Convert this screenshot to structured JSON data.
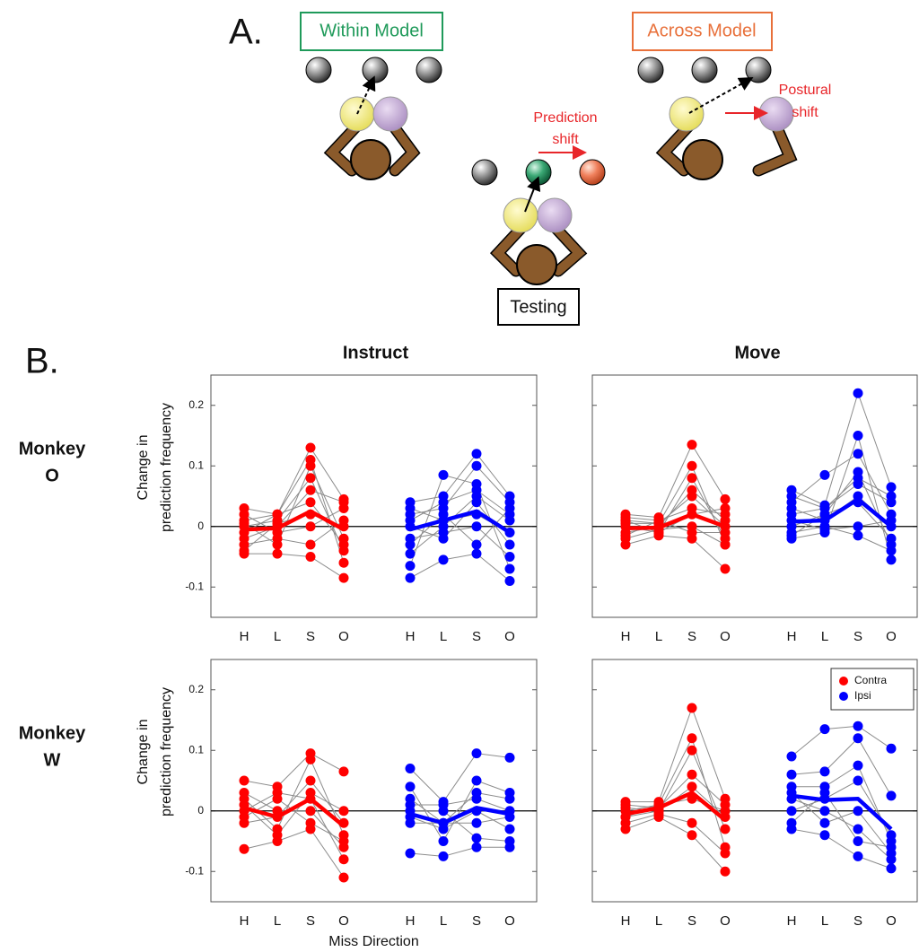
{
  "diagram": {
    "panel_a": "A.",
    "within": "Within Model",
    "across": "Across Model",
    "prediction_shift": [
      "Prediction",
      "shift"
    ],
    "postural_shift": [
      "Postural",
      "shift"
    ],
    "testing": "Testing",
    "panel_b": "B."
  },
  "chart_data": [
    {
      "type": "line",
      "title": "Instruct",
      "row_label": [
        "Monkey",
        "O"
      ],
      "ylabel": [
        "Change in",
        "prediction frequency"
      ],
      "ylim": [
        -0.15,
        0.25
      ],
      "yticks": [
        -0.1,
        0,
        0.1,
        0.2
      ],
      "ytick_labels": true,
      "zero_line": true,
      "groups": [
        {
          "color": "#ff0000",
          "categories": [
            "H",
            "L",
            "S",
            "O"
          ],
          "values": [
            -0.005,
            -0.003,
            0.025,
            -0.005
          ],
          "sessions": [
            [
              0.03,
              0.02,
              0.13,
              0.045
            ],
            [
              -0.045,
              -0.045,
              -0.05,
              -0.085
            ],
            [
              0.01,
              0.02,
              0.11,
              -0.06
            ],
            [
              -0.02,
              0.0,
              0.06,
              0.04
            ],
            [
              -0.03,
              -0.02,
              -0.03,
              0.01
            ],
            [
              0.0,
              0.01,
              0.08,
              -0.04
            ],
            [
              0.02,
              -0.01,
              0.0,
              0.03
            ],
            [
              -0.01,
              0.02,
              0.04,
              -0.03
            ],
            [
              0.005,
              -0.03,
              0.1,
              -0.02
            ],
            [
              -0.04,
              0.005,
              0.02,
              0.0
            ]
          ]
        },
        {
          "color": "#0000ff",
          "categories": [
            "H",
            "L",
            "S",
            "O"
          ],
          "values": [
            -0.005,
            0.01,
            0.025,
            -0.01
          ],
          "sessions": [
            [
              0.04,
              0.05,
              0.12,
              0.05
            ],
            [
              -0.085,
              -0.055,
              -0.045,
              -0.09
            ],
            [
              -0.065,
              0.085,
              0.07,
              -0.07
            ],
            [
              0.02,
              0.03,
              0.1,
              0.04
            ],
            [
              -0.02,
              -0.01,
              0.0,
              -0.05
            ],
            [
              0.01,
              0.04,
              0.06,
              0.02
            ],
            [
              -0.03,
              0.02,
              -0.03,
              0.03
            ],
            [
              0.0,
              -0.02,
              0.04,
              -0.03
            ],
            [
              0.03,
              0.01,
              0.02,
              -0.01
            ],
            [
              -0.045,
              0.0,
              0.05,
              0.01
            ]
          ]
        }
      ]
    },
    {
      "type": "line",
      "title": "Move",
      "ylim": [
        -0.15,
        0.25
      ],
      "yticks": [
        -0.1,
        0,
        0.1,
        0.2
      ],
      "ytick_labels": false,
      "zero_line": true,
      "groups": [
        {
          "color": "#ff0000",
          "categories": [
            "H",
            "L",
            "S",
            "O"
          ],
          "values": [
            -0.003,
            -0.002,
            0.02,
            0
          ],
          "sessions": [
            [
              0.02,
              0.015,
              0.135,
              0.045
            ],
            [
              -0.03,
              -0.015,
              -0.02,
              -0.07
            ],
            [
              0.01,
              0.005,
              0.1,
              -0.03
            ],
            [
              -0.01,
              0.0,
              0.06,
              0.01
            ],
            [
              0.0,
              -0.01,
              0.08,
              -0.02
            ],
            [
              0.015,
              0.01,
              0.03,
              0.02
            ],
            [
              -0.02,
              -0.005,
              0.0,
              -0.03
            ],
            [
              0.005,
              0.005,
              0.05,
              0.0
            ],
            [
              -0.015,
              0.01,
              -0.01,
              -0.01
            ],
            [
              0.01,
              -0.01,
              0.02,
              0.03
            ]
          ]
        },
        {
          "color": "#0000ff",
          "categories": [
            "H",
            "L",
            "S",
            "O"
          ],
          "values": [
            0.008,
            0.01,
            0.045,
            0
          ],
          "sessions": [
            [
              0.06,
              0.035,
              0.22,
              0.065
            ],
            [
              -0.02,
              -0.01,
              0.15,
              -0.055
            ],
            [
              0.04,
              0.085,
              0.12,
              0.02
            ],
            [
              0.0,
              0.02,
              0.09,
              -0.03
            ],
            [
              0.02,
              0.03,
              0.07,
              0.04
            ],
            [
              -0.01,
              0.0,
              -0.015,
              -0.04
            ],
            [
              0.03,
              0.01,
              0.05,
              0.0
            ],
            [
              0.01,
              -0.005,
              0.0,
              0.01
            ],
            [
              -0.015,
              0.02,
              0.04,
              -0.02
            ],
            [
              0.05,
              0.03,
              0.08,
              0.05
            ]
          ]
        }
      ]
    },
    {
      "type": "line",
      "row_label": [
        "Monkey",
        "W"
      ],
      "ylabel": [
        "Change in",
        "prediction frequency"
      ],
      "xlabel": "Miss Direction",
      "ylim": [
        -0.15,
        0.25
      ],
      "yticks": [
        -0.1,
        0,
        0.1,
        0.2
      ],
      "ytick_labels": true,
      "zero_line": true,
      "groups": [
        {
          "color": "#ff0000",
          "categories": [
            "H",
            "L",
            "S",
            "O"
          ],
          "values": [
            0.005,
            -0.01,
            0.02,
            -0.025
          ],
          "sessions": [
            [
              0.05,
              0.04,
              0.095,
              0.065
            ],
            [
              -0.063,
              -0.05,
              -0.03,
              -0.11
            ],
            [
              0.02,
              -0.03,
              0.085,
              -0.04
            ],
            [
              0.0,
              0.03,
              0.02,
              -0.08
            ],
            [
              -0.02,
              -0.01,
              0.05,
              -0.02
            ],
            [
              0.03,
              0.0,
              0.0,
              -0.06
            ],
            [
              0.01,
              -0.04,
              0.03,
              0.0
            ],
            [
              -0.01,
              0.02,
              -0.02,
              -0.05
            ]
          ]
        },
        {
          "color": "#0000ff",
          "categories": [
            "H",
            "L",
            "S",
            "O"
          ],
          "values": [
            -0.005,
            -0.02,
            0.005,
            -0.005
          ],
          "sessions": [
            [
              0.07,
              0.015,
              0.095,
              0.088
            ],
            [
              -0.07,
              -0.075,
              -0.06,
              -0.06
            ],
            [
              0.04,
              -0.05,
              0.05,
              0.03
            ],
            [
              0.0,
              0.0,
              -0.045,
              -0.05
            ],
            [
              0.02,
              -0.02,
              0.03,
              0.02
            ],
            [
              -0.01,
              -0.03,
              0.0,
              -0.03
            ],
            [
              0.01,
              0.01,
              0.02,
              0.0
            ],
            [
              -0.02,
              -0.02,
              -0.02,
              -0.01
            ]
          ]
        }
      ]
    },
    {
      "type": "line",
      "legend": "top-right",
      "ylim": [
        -0.15,
        0.25
      ],
      "yticks": [
        -0.1,
        0,
        0.1,
        0.2
      ],
      "ytick_labels": false,
      "zero_line": true,
      "groups": [
        {
          "name": "Contra",
          "color": "#ff0000",
          "categories": [
            "H",
            "L",
            "S",
            "O"
          ],
          "values": [
            -0.005,
            0.005,
            0.03,
            -0.015
          ],
          "sessions": [
            [
              0.015,
              0.015,
              0.17,
              0.02
            ],
            [
              -0.03,
              -0.01,
              -0.04,
              -0.1
            ],
            [
              0.0,
              0.01,
              0.12,
              -0.06
            ],
            [
              -0.01,
              0.0,
              0.1,
              -0.03
            ],
            [
              0.01,
              0.005,
              0.06,
              0.01
            ],
            [
              -0.02,
              -0.005,
              -0.02,
              -0.07
            ],
            [
              0.005,
              0.0,
              0.04,
              -0.01
            ],
            [
              -0.01,
              0.01,
              0.02,
              0.0
            ]
          ]
        },
        {
          "name": "Ipsi",
          "color": "#0000ff",
          "categories": [
            "H",
            "L",
            "S",
            "O"
          ],
          "values": [
            0.025,
            0.018,
            0.02,
            -0.03
          ],
          "sessions": [
            [
              0.09,
              0.135,
              0.14,
              0.103
            ],
            [
              -0.03,
              -0.04,
              -0.075,
              -0.095
            ],
            [
              0.06,
              0.065,
              0.12,
              0.025
            ],
            [
              0.04,
              0.04,
              0.075,
              -0.05
            ],
            [
              0.02,
              0.0,
              -0.03,
              -0.08
            ],
            [
              0.0,
              0.02,
              0.05,
              -0.04
            ],
            [
              0.03,
              -0.02,
              0.0,
              -0.07
            ],
            [
              -0.02,
              0.03,
              -0.05,
              -0.06
            ]
          ]
        }
      ]
    }
  ]
}
